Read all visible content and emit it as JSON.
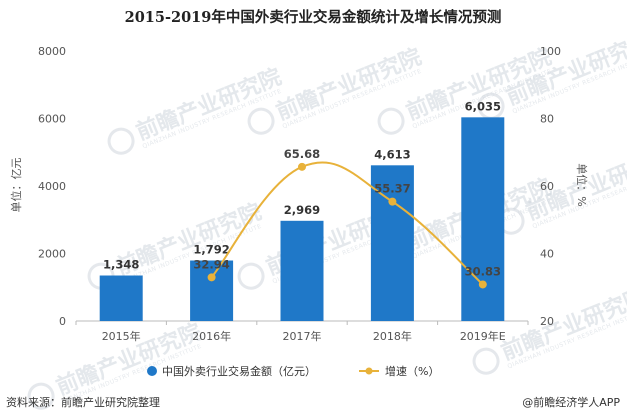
{
  "chart_data": {
    "type": "bar+line",
    "title": "2015-2019年中国外卖行业交易金额统计及增长情况预测",
    "categories": [
      "2015年",
      "2016年",
      "2017年",
      "2018年",
      "2019年E"
    ],
    "series": [
      {
        "name": "中国外卖行业交易金额（亿元）",
        "type": "bar",
        "axis": "left",
        "values": [
          1348,
          1792,
          2969,
          4613,
          6035
        ],
        "labels": [
          "1,348",
          "1,792",
          "2,969",
          "4,613",
          "6,035"
        ],
        "color": "#1f78c8"
      },
      {
        "name": "增速（%）",
        "type": "line",
        "axis": "right",
        "values": [
          null,
          32.94,
          65.68,
          55.37,
          30.83
        ],
        "labels": [
          "",
          "32.94",
          "65.68",
          "55.37",
          "30.83"
        ],
        "color": "#e8b23a"
      }
    ],
    "y_left": {
      "label": "单位：亿元",
      "range": [
        0,
        8000
      ],
      "ticks": [
        "0",
        "2000",
        "4000",
        "6000",
        "8000"
      ]
    },
    "y_right": {
      "label": "单位：%",
      "range": [
        20,
        100
      ],
      "ticks": [
        "20",
        "40",
        "60",
        "80",
        "100"
      ]
    },
    "grid": false,
    "legend_position": "bottom"
  },
  "footer": {
    "source": "资料来源：前瞻产业研究院整理",
    "brand": "@前瞻经济学人APP"
  },
  "watermark": {
    "text": "前瞻产业研究院",
    "sub": "QIANZHAN INDUSTRY RESEARCH INSTITUTE"
  }
}
